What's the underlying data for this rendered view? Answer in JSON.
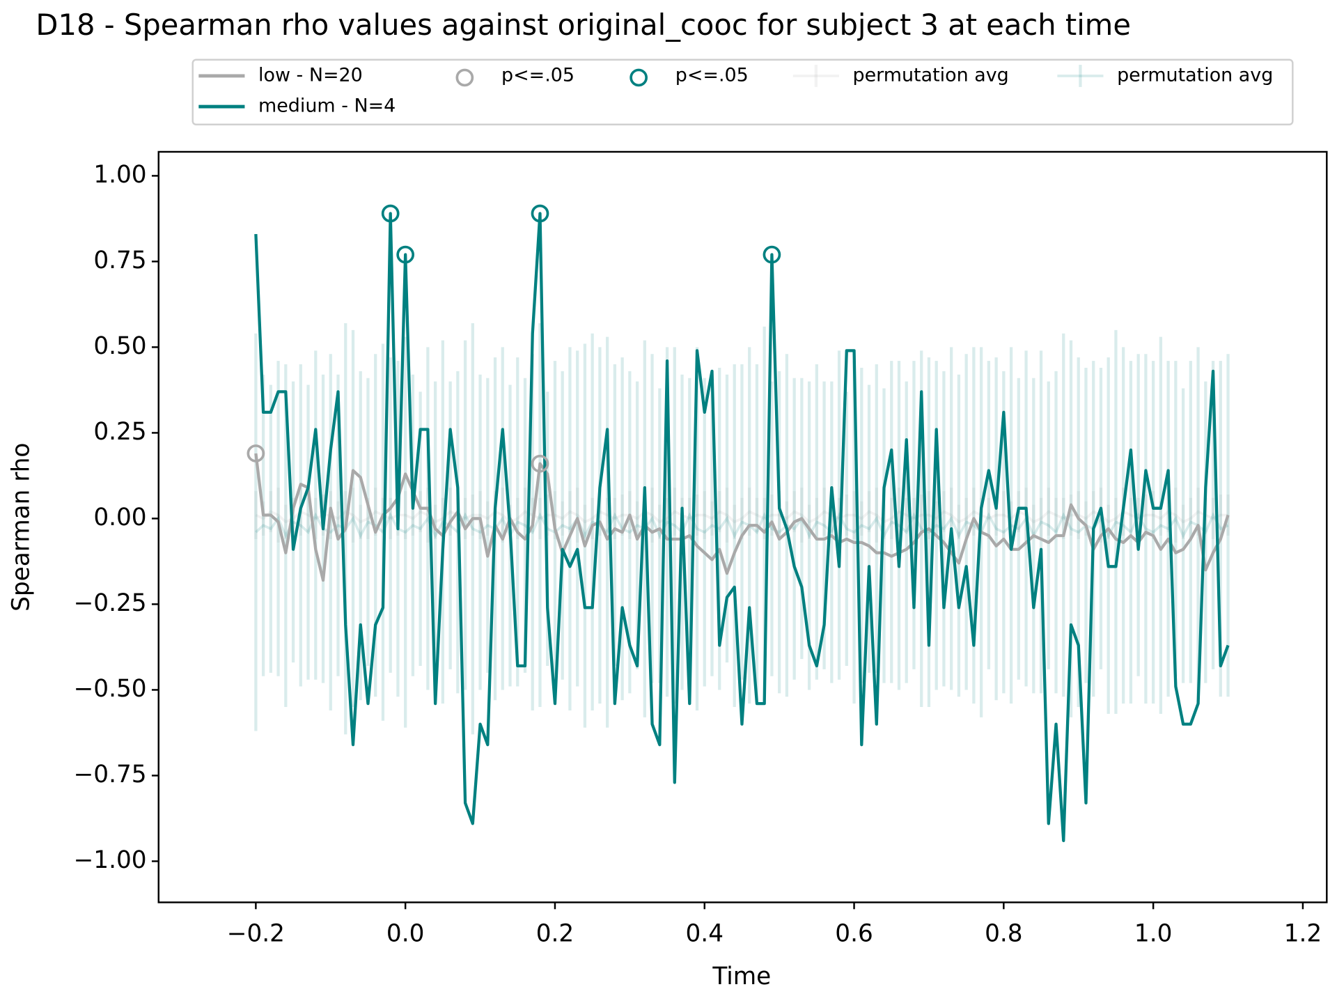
{
  "chart_data": {
    "type": "line",
    "title": "D18 - Spearman rho values against original_cooc for subject 3 at each time",
    "x_label": "Time",
    "y_label": "Spearman rho",
    "xlim": [
      -0.33,
      1.232
    ],
    "ylim": [
      -1.12,
      1.07
    ],
    "xticks": [
      {
        "value": -0.2,
        "label": "−0.2"
      },
      {
        "value": 0,
        "label": "0.0"
      },
      0.2,
      0.4,
      0.6,
      0.8,
      {
        "value": 1,
        "label": "1.0"
      },
      1.2
    ],
    "yticks": [
      {
        "value": -1,
        "label": "−1.00"
      },
      {
        "value": -0.75,
        "label": "−0.75"
      },
      {
        "value": -0.5,
        "label": "−0.50"
      },
      {
        "value": -0.25,
        "label": "−0.25"
      },
      {
        "value": 0,
        "label": "0.00"
      },
      0.25,
      {
        "value": 0.5,
        "label": "0.50"
      },
      0.75,
      {
        "value": 1,
        "label": "1.00"
      }
    ],
    "x": [
      -0.2,
      -0.19,
      -0.18,
      -0.17,
      -0.16,
      -0.15,
      -0.14,
      -0.13,
      -0.12,
      -0.11,
      -0.1,
      -0.09,
      -0.08,
      -0.07,
      -0.06,
      -0.05,
      -0.04,
      -0.03,
      -0.02,
      -0.01,
      0,
      0.01,
      0.02,
      0.03,
      0.04,
      0.05,
      0.06,
      0.07,
      0.08,
      0.09,
      0.1,
      0.11,
      0.12,
      0.13,
      0.14,
      0.15,
      0.16,
      0.17,
      0.18,
      0.19,
      0.2,
      0.21,
      0.22,
      0.23,
      0.24,
      0.25,
      0.26,
      0.27,
      0.28,
      0.29,
      0.3,
      0.31,
      0.32,
      0.33,
      0.34,
      0.35,
      0.36,
      0.37,
      0.38,
      0.39,
      0.4,
      0.41,
      0.42,
      0.43,
      0.44,
      0.45,
      0.46,
      0.47,
      0.48,
      0.49,
      0.5,
      0.51,
      0.52,
      0.53,
      0.54,
      0.55,
      0.56,
      0.57,
      0.58,
      0.59,
      0.6,
      0.61,
      0.62,
      0.63,
      0.64,
      0.65,
      0.66,
      0.67,
      0.68,
      0.69,
      0.7,
      0.71,
      0.72,
      0.73,
      0.74,
      0.75,
      0.76,
      0.77,
      0.78,
      0.79,
      0.8,
      0.81,
      0.82,
      0.83,
      0.84,
      0.85,
      0.86,
      0.87,
      0.88,
      0.89,
      0.9,
      0.91,
      0.92,
      0.93,
      0.94,
      0.95,
      0.96,
      0.97,
      0.98,
      0.99,
      1,
      1.01,
      1.02,
      1.03,
      1.04,
      1.05,
      1.06,
      1.07,
      1.08,
      1.09,
      1.1
    ],
    "series": [
      {
        "name": "low - N=20",
        "type": "line",
        "color": "#a9a9a9",
        "values": [
          0.19,
          0.01,
          0.01,
          -0.01,
          -0.1,
          0.03,
          0.1,
          0.09,
          -0.09,
          -0.18,
          0.03,
          -0.06,
          -0.03,
          0.14,
          0.12,
          0.04,
          -0.04,
          0.01,
          0.03,
          0.06,
          0.13,
          0.08,
          0.03,
          0.03,
          -0.03,
          -0.05,
          -0.01,
          0.02,
          -0.03,
          0,
          0,
          -0.11,
          -0.02,
          -0.06,
          0,
          -0.04,
          -0.06,
          -0.02,
          0.16,
          0.13,
          -0.03,
          -0.1,
          -0.05,
          0,
          -0.08,
          -0.02,
          -0.01,
          -0.06,
          -0.03,
          -0.04,
          0.01,
          -0.06,
          -0.02,
          -0.04,
          -0.03,
          -0.06,
          -0.06,
          -0.06,
          -0.05,
          -0.08,
          -0.1,
          -0.12,
          -0.09,
          -0.16,
          -0.1,
          -0.05,
          -0.02,
          -0.02,
          -0.04,
          -0.01,
          -0.06,
          -0.04,
          -0.01,
          0,
          -0.03,
          -0.06,
          -0.06,
          -0.05,
          -0.07,
          -0.06,
          -0.07,
          -0.07,
          -0.08,
          -0.1,
          -0.1,
          -0.11,
          -0.1,
          -0.09,
          -0.07,
          -0.04,
          -0.03,
          -0.05,
          -0.07,
          -0.1,
          -0.13,
          -0.06,
          0,
          -0.04,
          -0.05,
          -0.08,
          -0.06,
          -0.09,
          -0.09,
          -0.07,
          -0.05,
          -0.06,
          -0.07,
          -0.05,
          -0.05,
          0.04,
          0,
          -0.02,
          -0.09,
          -0.05,
          -0.03,
          -0.06,
          -0.07,
          -0.05,
          -0.07,
          -0.04,
          -0.05,
          -0.09,
          -0.06,
          -0.1,
          -0.09,
          -0.06,
          -0.02,
          -0.15,
          -0.1,
          -0.06,
          0.01
        ]
      },
      {
        "name": "medium - N=4",
        "type": "line",
        "color": "#008080",
        "values": [
          0.83,
          0.31,
          0.31,
          0.37,
          0.37,
          -0.09,
          0.03,
          0.09,
          0.26,
          -0.03,
          0.2,
          0.37,
          -0.31,
          -0.66,
          -0.31,
          -0.54,
          -0.31,
          -0.26,
          0.89,
          -0.03,
          0.77,
          0.03,
          0.26,
          0.26,
          -0.54,
          -0.09,
          0.26,
          0.09,
          -0.83,
          -0.89,
          -0.6,
          -0.66,
          0.03,
          0.26,
          -0.03,
          -0.43,
          -0.43,
          0.54,
          0.89,
          -0.26,
          -0.54,
          -0.09,
          -0.14,
          -0.09,
          -0.26,
          -0.26,
          0.09,
          0.26,
          -0.54,
          -0.26,
          -0.37,
          -0.43,
          0.09,
          -0.6,
          -0.66,
          0.46,
          -0.77,
          0.03,
          -0.54,
          0.49,
          0.31,
          0.43,
          -0.37,
          -0.23,
          -0.2,
          -0.6,
          -0.26,
          -0.54,
          -0.54,
          0.77,
          0.03,
          -0.03,
          -0.14,
          -0.2,
          -0.37,
          -0.43,
          -0.31,
          0.09,
          -0.14,
          0.49,
          0.49,
          -0.66,
          -0.14,
          -0.6,
          0.09,
          0.2,
          -0.14,
          0.23,
          -0.26,
          0.37,
          -0.37,
          0.26,
          -0.26,
          -0.03,
          -0.26,
          -0.14,
          -0.37,
          0.03,
          0.14,
          0.03,
          0.31,
          -0.09,
          0.03,
          0.03,
          -0.26,
          -0.09,
          -0.89,
          -0.6,
          -0.94,
          -0.31,
          -0.37,
          -0.83,
          -0.03,
          0.03,
          -0.14,
          -0.14,
          0.03,
          0.2,
          -0.09,
          0.14,
          0.03,
          0.03,
          0.14,
          -0.49,
          -0.6,
          -0.6,
          -0.54,
          0.09,
          0.43,
          -0.43,
          -0.37
        ]
      },
      {
        "name": "p<=.05",
        "type": "scatter",
        "color": "#a9a9a9",
        "x": [
          -0.2,
          0.18
        ],
        "values": [
          0.19,
          0.16
        ]
      },
      {
        "name": "p<=.05",
        "type": "scatter",
        "color": "#008080",
        "x": [
          -0.02,
          0,
          0.18,
          0.49
        ],
        "values": [
          0.89,
          0.77,
          0.89,
          0.77
        ]
      },
      {
        "name": "permutation avg",
        "type": "errorbar",
        "color": "#a9a9a9",
        "values": [
          0.01,
          0,
          0.02,
          0.01,
          -0.01,
          0,
          0.02,
          0.01,
          0,
          0.01,
          0.01,
          0,
          0.02,
          0.01,
          -0.01,
          0,
          0.02,
          0.01,
          0,
          0.01,
          0.01,
          0,
          0.02,
          0.01,
          -0.01,
          0,
          0.02,
          0.01,
          0,
          0.01,
          0.01,
          0,
          0.02,
          0.01,
          -0.01,
          0,
          0.02,
          0.01,
          0,
          0.01,
          0.01,
          0,
          0.02,
          0.01,
          -0.01,
          0,
          0.02,
          0.01,
          0,
          0.01,
          0.01,
          0,
          0.02,
          0.01,
          -0.01,
          0,
          0.02,
          0.01,
          0,
          0.01,
          0.01,
          0,
          0.02,
          0.01,
          -0.01,
          0,
          0.02,
          0.01,
          0,
          0.01,
          0.01,
          0,
          0.02,
          0.01,
          -0.01,
          0,
          0.02,
          0.01,
          0,
          0.01,
          0.01,
          0,
          0.02,
          0.01,
          -0.01,
          0,
          0.02,
          0.01,
          0,
          0.01,
          0.01,
          0,
          0.02,
          0.01,
          -0.01,
          0,
          0.02,
          0.01,
          0,
          0.01,
          0.01,
          0,
          0.02,
          0.01,
          -0.01,
          0,
          0.02,
          0.01,
          0,
          0.01,
          0.01,
          0,
          0.02,
          0.01,
          -0.01,
          0,
          0.02,
          0.01,
          0,
          0.01,
          0.01,
          0,
          0.02,
          0.01,
          -0.01,
          0,
          0.02,
          0.01,
          0,
          0.01,
          0.01
        ],
        "errors": [
          0.07,
          0.05,
          0.06,
          0.08,
          0.05,
          0.06,
          0.07,
          0.05,
          0.06,
          0.06,
          0.07,
          0.05,
          0.06,
          0.08,
          0.05,
          0.06,
          0.07,
          0.05,
          0.06,
          0.06,
          0.07,
          0.05,
          0.06,
          0.08,
          0.05,
          0.06,
          0.07,
          0.05,
          0.06,
          0.06,
          0.07,
          0.05,
          0.06,
          0.08,
          0.05,
          0.06,
          0.07,
          0.05,
          0.06,
          0.06,
          0.07,
          0.05,
          0.06,
          0.08,
          0.05,
          0.06,
          0.07,
          0.05,
          0.06,
          0.06,
          0.07,
          0.05,
          0.06,
          0.08,
          0.05,
          0.06,
          0.07,
          0.05,
          0.06,
          0.06,
          0.07,
          0.05,
          0.06,
          0.08,
          0.05,
          0.06,
          0.07,
          0.05,
          0.06,
          0.06,
          0.07,
          0.05,
          0.06,
          0.08,
          0.05,
          0.06,
          0.07,
          0.05,
          0.06,
          0.06,
          0.07,
          0.05,
          0.06,
          0.08,
          0.05,
          0.06,
          0.07,
          0.05,
          0.06,
          0.06,
          0.07,
          0.05,
          0.06,
          0.08,
          0.05,
          0.06,
          0.07,
          0.05,
          0.06,
          0.06,
          0.07,
          0.05,
          0.06,
          0.08,
          0.05,
          0.06,
          0.07,
          0.05,
          0.06,
          0.06,
          0.07,
          0.05,
          0.06,
          0.08,
          0.05,
          0.06,
          0.07,
          0.05,
          0.06,
          0.06,
          0.07,
          0.05,
          0.06,
          0.08,
          0.05,
          0.06,
          0.07,
          0.05,
          0.06,
          0.06,
          0.06
        ]
      },
      {
        "name": "permutation avg",
        "type": "errorbar",
        "color": "#008080",
        "values": [
          -0.04,
          -0.02,
          -0.03,
          0,
          -0.05,
          -0.01,
          -0.02,
          -0.04,
          0.01,
          -0.03,
          -0.04,
          -0.02,
          -0.03,
          0,
          -0.05,
          -0.01,
          -0.02,
          -0.04,
          0.01,
          -0.03,
          -0.04,
          -0.02,
          -0.03,
          0,
          -0.05,
          -0.01,
          -0.02,
          -0.04,
          0.01,
          -0.03,
          -0.04,
          -0.02,
          -0.03,
          0,
          -0.05,
          -0.01,
          -0.02,
          -0.04,
          0.01,
          -0.03,
          -0.04,
          -0.02,
          -0.03,
          0,
          -0.05,
          -0.01,
          -0.02,
          -0.04,
          0.01,
          -0.03,
          -0.04,
          -0.02,
          -0.03,
          0,
          -0.05,
          -0.01,
          -0.02,
          -0.04,
          0.01,
          -0.03,
          -0.04,
          -0.02,
          -0.03,
          0,
          -0.05,
          -0.01,
          -0.02,
          -0.04,
          0.01,
          -0.03,
          -0.04,
          -0.02,
          -0.03,
          0,
          -0.05,
          -0.01,
          -0.02,
          -0.04,
          0.01,
          -0.03,
          -0.04,
          -0.02,
          -0.03,
          0,
          -0.05,
          -0.01,
          -0.02,
          -0.04,
          0.01,
          -0.03,
          -0.04,
          -0.02,
          -0.03,
          0,
          -0.05,
          -0.01,
          -0.02,
          -0.04,
          0.01,
          -0.03,
          -0.04,
          -0.02,
          -0.03,
          0,
          -0.05,
          -0.01,
          -0.02,
          -0.04,
          0.01,
          -0.03,
          -0.04,
          -0.02,
          -0.03,
          0,
          -0.05,
          -0.01,
          -0.02,
          -0.04,
          0.01,
          -0.03,
          -0.04,
          -0.02,
          -0.03,
          0,
          -0.05,
          -0.01,
          -0.02,
          -0.04,
          0.01,
          -0.03,
          -0.02
        ],
        "errors": [
          0.58,
          0.44,
          0.42,
          0.46,
          0.5,
          0.41,
          0.47,
          0.43,
          0.48,
          0.45,
          0.52,
          0.44,
          0.6,
          0.55,
          0.48,
          0.42,
          0.5,
          0.55,
          0.46,
          0.49,
          0.57,
          0.44,
          0.4,
          0.5,
          0.45,
          0.53,
          0.42,
          0.47,
          0.51,
          0.6,
          0.46,
          0.43,
          0.5,
          0.5,
          0.44,
          0.48,
          0.43,
          0.52,
          0.56,
          0.4,
          0.5,
          0.45,
          0.53,
          0.49,
          0.56,
          0.55,
          0.52,
          0.57,
          0.44,
          0.5,
          0.47,
          0.42,
          0.55,
          0.48,
          0.43,
          0.51,
          0.52,
          0.46,
          0.4,
          0.53,
          0.45,
          0.44,
          0.47,
          0.42,
          0.5,
          0.46,
          0.52,
          0.49,
          0.55,
          0.43,
          0.47,
          0.5,
          0.44,
          0.41,
          0.45,
          0.46,
          0.42,
          0.44,
          0.48,
          0.4,
          0.5,
          0.46,
          0.42,
          0.45,
          0.43,
          0.47,
          0.48,
          0.44,
          0.45,
          0.52,
          0.51,
          0.48,
          0.46,
          0.5,
          0.47,
          0.49,
          0.52,
          0.54,
          0.45,
          0.5,
          0.47,
          0.52,
          0.44,
          0.49,
          0.46,
          0.5,
          0.42,
          0.47,
          0.53,
          0.55,
          0.51,
          0.46,
          0.49,
          0.44,
          0.52,
          0.56,
          0.52,
          0.5,
          0.47,
          0.51,
          0.5,
          0.55,
          0.49,
          0.46,
          0.43,
          0.47,
          0.52,
          0.44,
          0.45,
          0.49,
          0.5
        ]
      }
    ]
  }
}
